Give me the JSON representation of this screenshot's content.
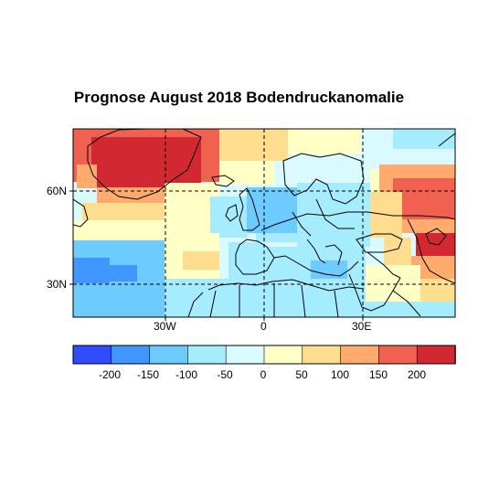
{
  "title": "Prognose August 2018 Bodendruckanomalie",
  "map": {
    "lat_labels": [
      "60N",
      "30N"
    ],
    "lon_labels": [
      "30W",
      "0",
      "30E"
    ]
  },
  "colorbar": {
    "ticks": [
      "-200",
      "-150",
      "-100",
      "-50",
      "0",
      "50",
      "100",
      "150",
      "200"
    ],
    "colors": [
      "#2f4dff",
      "#3f97ff",
      "#6dcbff",
      "#a6ecff",
      "#d9fbff",
      "#ffffc6",
      "#ffdd8f",
      "#ffab6e",
      "#f1614f",
      "#d12832"
    ]
  }
}
